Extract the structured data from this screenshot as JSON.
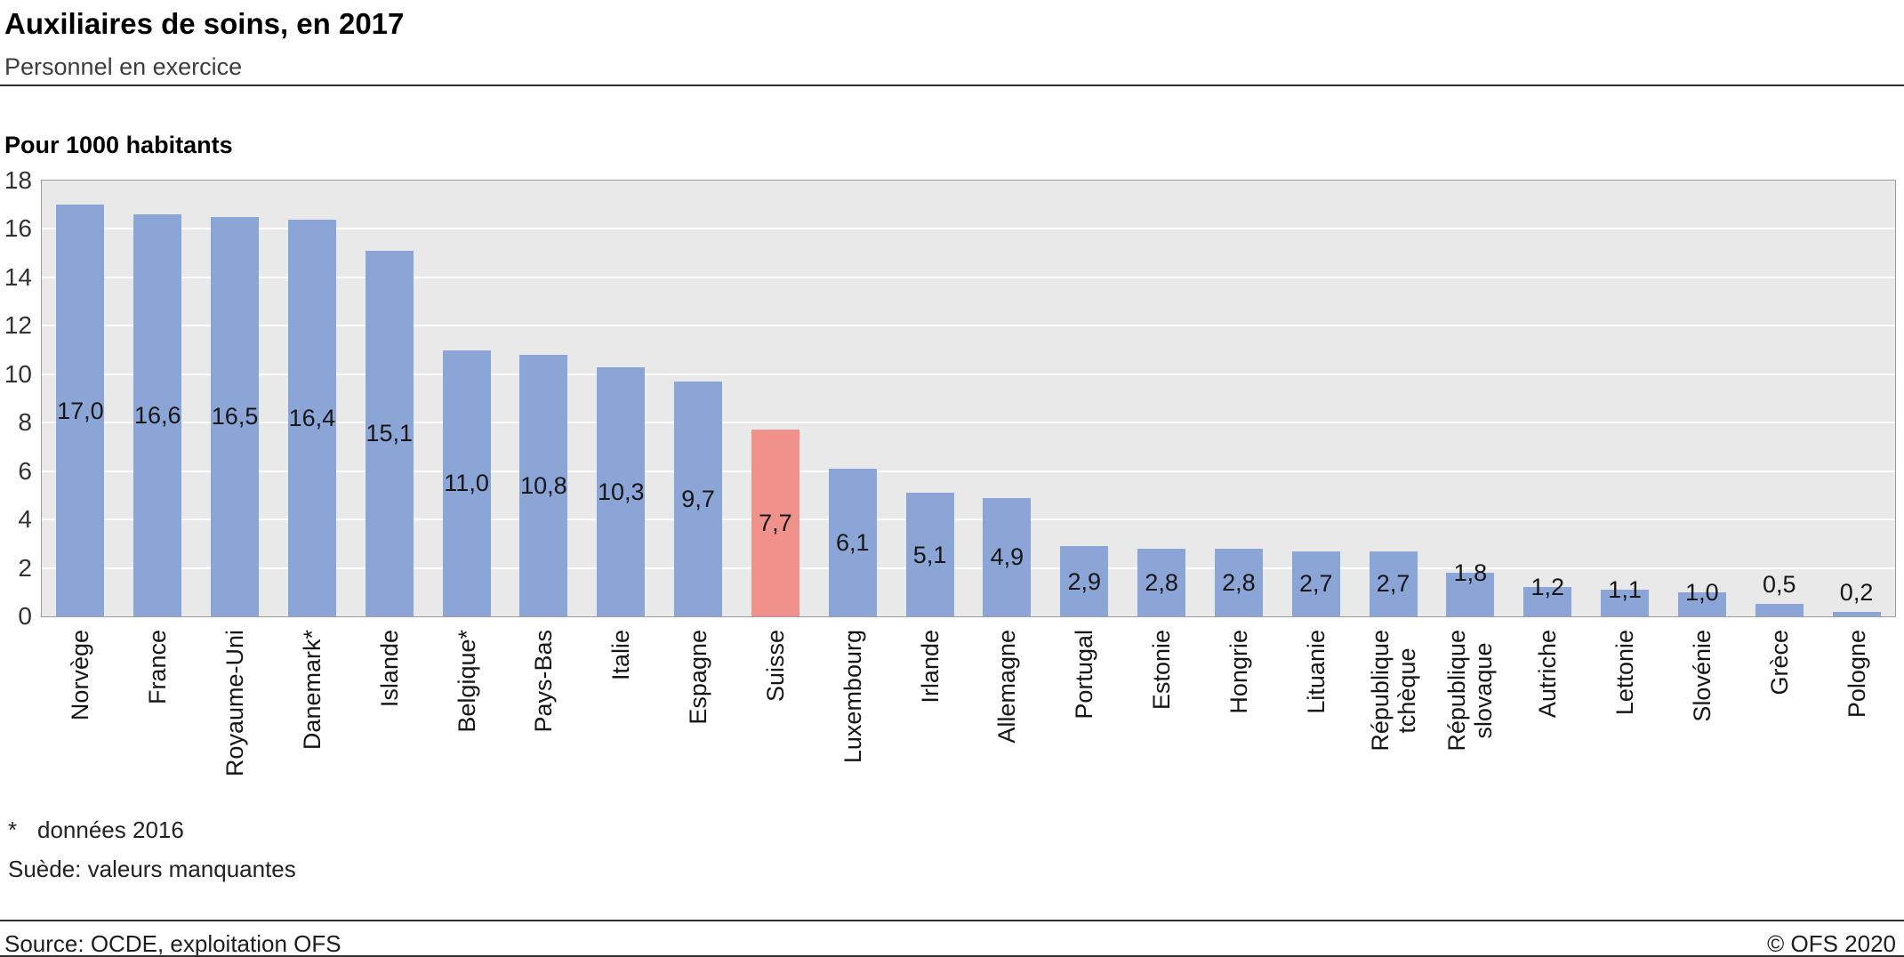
{
  "chart_data": {
    "type": "bar",
    "title": "Auxiliaires de soins, en 2017",
    "subtitle": "Personnel en exercice",
    "ylabel": "Pour 1000 habitants",
    "xlabel": "",
    "ylim": [
      0,
      18
    ],
    "ytick_step": 2,
    "grid": "horizontal white gridlines on light gray plot background",
    "legend": "none",
    "categories": [
      "Norvège",
      "France",
      "Royaume-Uni",
      "Danemark*",
      "Islande",
      "Belgique*",
      "Pays-Bas",
      "Italie",
      "Espagne",
      "Suisse",
      "Luxembourg",
      "Irlande",
      "Allemagne",
      "Portugal",
      "Estonie",
      "Hongrie",
      "Lituanie",
      "République\ntchèque",
      "République\nslovaque",
      "Autriche",
      "Lettonie",
      "Slovénie",
      "Grèce",
      "Pologne"
    ],
    "values": [
      17.0,
      16.6,
      16.5,
      16.4,
      15.1,
      11.0,
      10.8,
      10.3,
      9.7,
      7.7,
      6.1,
      5.1,
      4.9,
      2.9,
      2.8,
      2.8,
      2.7,
      2.7,
      1.8,
      1.2,
      1.1,
      1.0,
      0.5,
      0.2
    ],
    "value_labels": [
      "17,0",
      "16,6",
      "16,5",
      "16,4",
      "15,1",
      "11,0",
      "10,8",
      "10,3",
      "9,7",
      "7,7",
      "6,1",
      "5,1",
      "4,9",
      "2,9",
      "2,8",
      "2,8",
      "2,7",
      "2,7",
      "1,8",
      "1,2",
      "1,1",
      "1,0",
      "0,5",
      "0,2"
    ],
    "highlight_index": 9,
    "highlight_category": "Suisse",
    "colors": {
      "bar": "#8ba5d7",
      "highlight": "#f0918b",
      "plot_bg": "#e9e9e9",
      "grid": "#ffffff",
      "plot_border": "#9c9c9c"
    }
  },
  "footnotes": [
    {
      "marker": "*",
      "text": "données 2016"
    },
    {
      "marker": "",
      "text": "Suède: valeurs manquantes"
    }
  ],
  "footer": {
    "source": "Source: OCDE, exploitation OFS",
    "copyright": "© OFS 2020"
  }
}
